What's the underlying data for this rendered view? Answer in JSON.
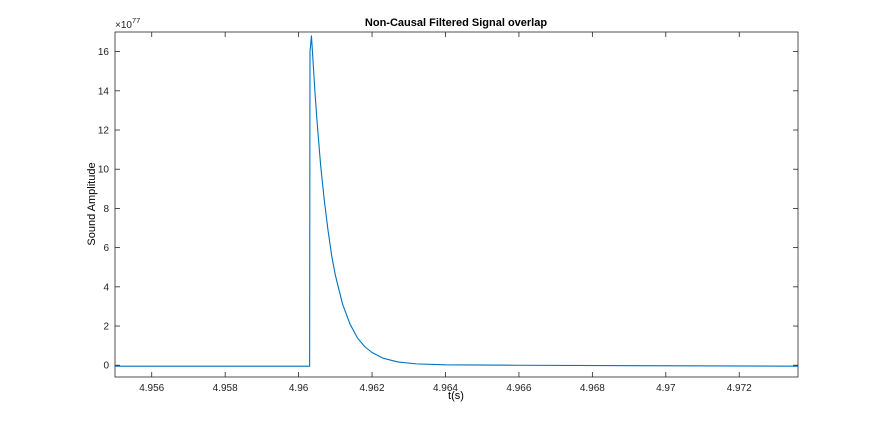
{
  "chart_data": {
    "type": "line",
    "title": "Non-Causal Filtered Signal overlap",
    "xlabel": "t(s)",
    "ylabel": "Sound Amplitude",
    "y_exponent_label": "×10",
    "y_exponent_power": "77",
    "y_scale": 1e+77,
    "xlim": [
      4.955,
      4.9736
    ],
    "ylim": [
      -0.6,
      17
    ],
    "xticks": [
      4.956,
      4.958,
      4.96,
      4.962,
      4.964,
      4.966,
      4.968,
      4.97,
      4.972
    ],
    "xtick_labels": [
      "4.956",
      "4.958",
      "4.96",
      "4.962",
      "4.964",
      "4.966",
      "4.968",
      "4.97",
      "4.972"
    ],
    "yticks": [
      0,
      2,
      4,
      6,
      8,
      10,
      12,
      14,
      16
    ],
    "ytick_labels": [
      "0",
      "2",
      "4",
      "6",
      "8",
      "10",
      "12",
      "14",
      "16"
    ],
    "grid": false,
    "line_color": "#0072bd",
    "series": [
      {
        "x": [
          4.955,
          4.9603,
          4.96031,
          4.96035,
          4.9604,
          4.96045,
          4.9605,
          4.9606,
          4.9607,
          4.9608,
          4.9609,
          4.961,
          4.9612,
          4.9614,
          4.9616,
          4.9618,
          4.962,
          4.9623,
          4.9627,
          4.9632,
          4.964,
          4.966,
          4.9736
        ],
        "y": [
          -0.05,
          -0.05,
          16.0,
          16.8,
          15.3,
          13.8,
          12.5,
          10.2,
          8.4,
          6.9,
          5.6,
          4.6,
          3.1,
          2.1,
          1.4,
          0.95,
          0.65,
          0.36,
          0.17,
          0.07,
          0.02,
          0.0,
          -0.05
        ]
      }
    ]
  }
}
